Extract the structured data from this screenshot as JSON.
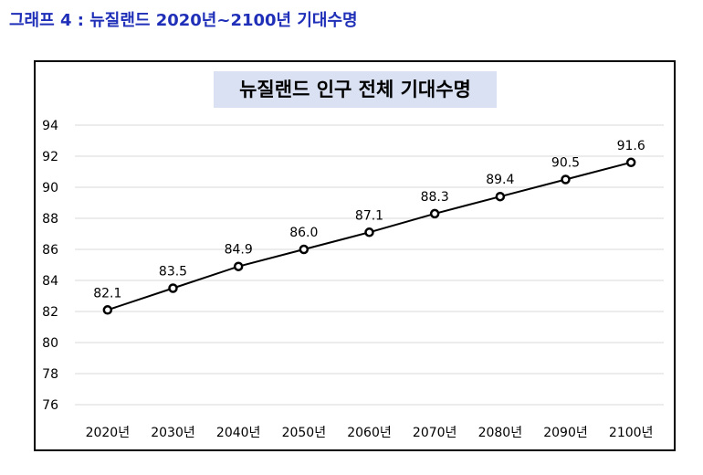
{
  "caption": "그래프 4 : 뉴질랜드 2020년~2100년 기대수명",
  "colors": {
    "caption": "#1f2fb8",
    "title_bg": "#d9e1f2",
    "line": "#000000",
    "grid": "#d9d9d9"
  },
  "chart_data": {
    "type": "line",
    "title": "뉴질랜드 인구 전체 기대수명",
    "xlabel": "",
    "ylabel": "",
    "categories": [
      "2020년",
      "2030년",
      "2040년",
      "2050년",
      "2060년",
      "2070년",
      "2080년",
      "2090년",
      "2100년"
    ],
    "values": [
      82.1,
      83.5,
      84.9,
      86.0,
      87.1,
      88.3,
      89.4,
      90.5,
      91.6
    ],
    "data_labels": [
      "82.1",
      "83.5",
      "84.9",
      "86.0",
      "87.1",
      "88.3",
      "89.4",
      "90.5",
      "91.6"
    ],
    "ylim": [
      76,
      94
    ],
    "yticks": [
      "76",
      "78",
      "80",
      "82",
      "84",
      "86",
      "88",
      "90",
      "92",
      "94"
    ],
    "grid": true,
    "legend": false
  }
}
